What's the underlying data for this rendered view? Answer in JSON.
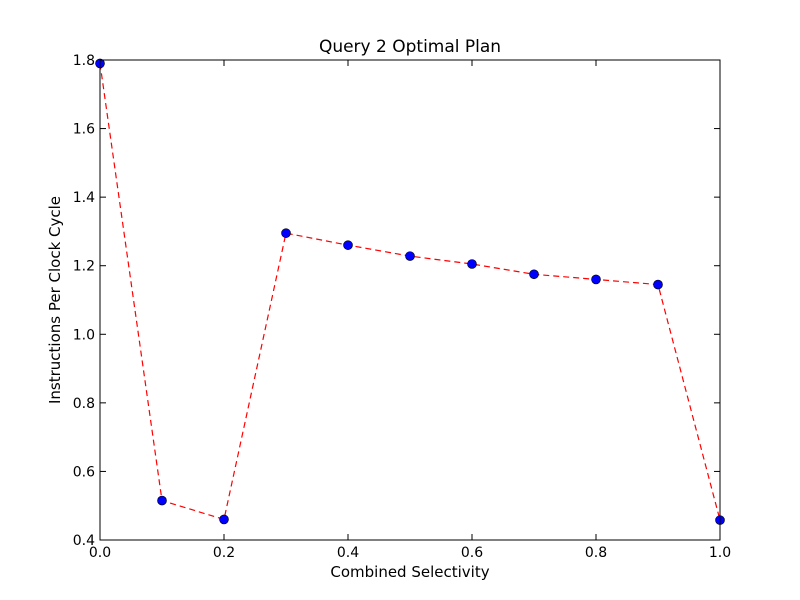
{
  "chart_data": {
    "type": "line",
    "title": "Query 2 Optimal Plan",
    "xlabel": "Combined Selectivity",
    "ylabel": "Instructions Per Clock Cycle",
    "xlim": [
      0.0,
      1.0
    ],
    "ylim": [
      0.4,
      1.8
    ],
    "xticks": [
      "0.0",
      "0.2",
      "0.4",
      "0.6",
      "0.8",
      "1.0"
    ],
    "yticks": [
      "0.4",
      "0.6",
      "0.8",
      "1.0",
      "1.2",
      "1.4",
      "1.6",
      "1.8"
    ],
    "grid": false,
    "series": [
      {
        "x": [
          0.0,
          0.1,
          0.2,
          0.3,
          0.4,
          0.5,
          0.6,
          0.7,
          0.8,
          0.9,
          1.0
        ],
        "values": [
          1.79,
          0.515,
          0.46,
          1.295,
          1.26,
          1.228,
          1.205,
          1.175,
          1.16,
          1.145,
          0.458
        ],
        "line_color": "#ff0000",
        "line_style": "dashed",
        "marker_color": "#0000ff",
        "marker": "circle"
      }
    ]
  }
}
